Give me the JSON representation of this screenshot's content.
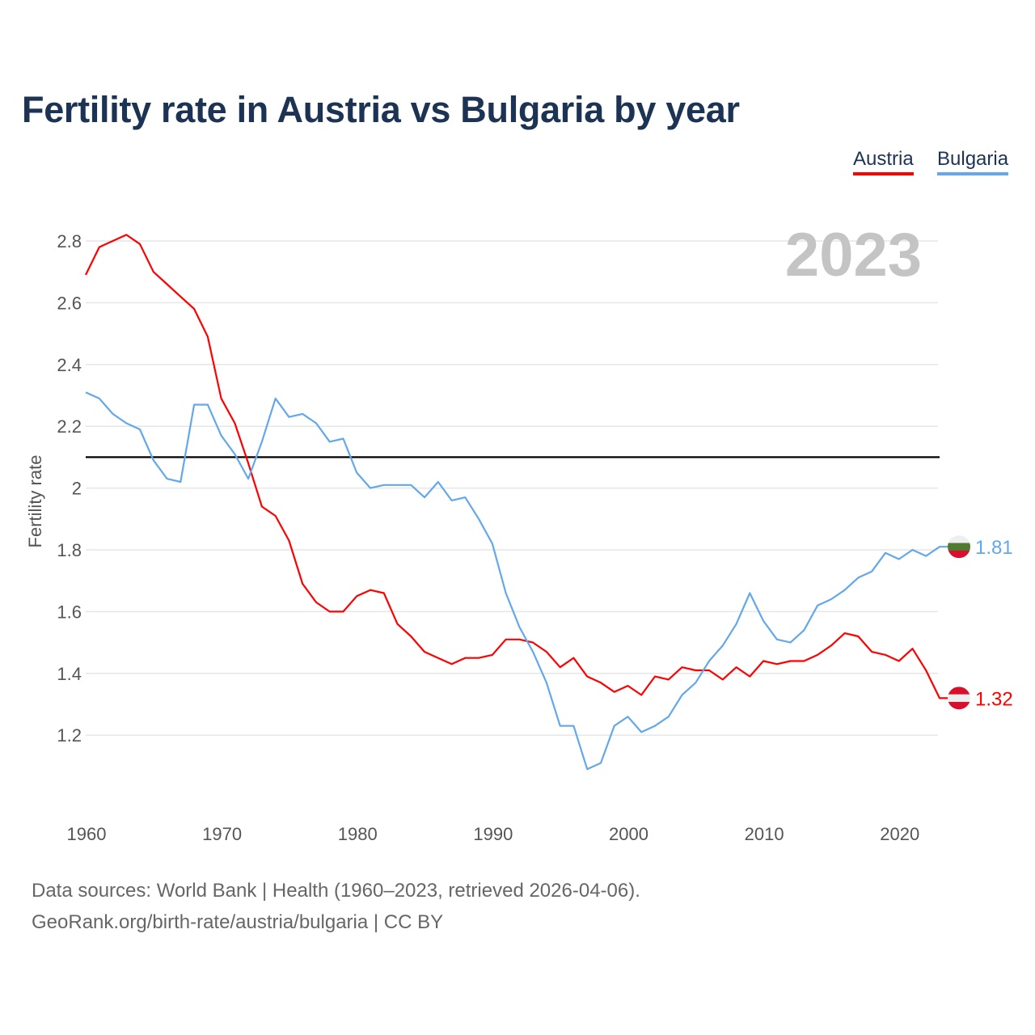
{
  "chart_data": {
    "type": "line",
    "title": "Fertility rate in Austria vs Bulgaria by year",
    "xlabel": "",
    "ylabel": "Fertility rate",
    "year_label": "2023",
    "xlim": [
      1960,
      2023
    ],
    "ylim": [
      1.0,
      2.85
    ],
    "grid": true,
    "legend_position": "top-right",
    "y_ticks": [
      1.2,
      1.4,
      1.6,
      1.8,
      2,
      2.2,
      2.4,
      2.6,
      2.8
    ],
    "y_tick_labels": [
      "1.2",
      "1.4",
      "1.6",
      "1.8",
      "2",
      "2.2",
      "2.4",
      "2.6",
      "2.8"
    ],
    "x_ticks": [
      1960,
      1970,
      1980,
      1990,
      2000,
      2010,
      2020
    ],
    "x_tick_labels": [
      "1960",
      "1970",
      "1980",
      "1990",
      "2000",
      "2010",
      "2020"
    ],
    "reference_line": 2.1,
    "x": [
      1960,
      1961,
      1962,
      1963,
      1964,
      1965,
      1966,
      1967,
      1968,
      1969,
      1970,
      1971,
      1972,
      1973,
      1974,
      1975,
      1976,
      1977,
      1978,
      1979,
      1980,
      1981,
      1982,
      1983,
      1984,
      1985,
      1986,
      1987,
      1988,
      1989,
      1990,
      1991,
      1992,
      1993,
      1994,
      1995,
      1996,
      1997,
      1998,
      1999,
      2000,
      2001,
      2002,
      2003,
      2004,
      2005,
      2006,
      2007,
      2008,
      2009,
      2010,
      2011,
      2012,
      2013,
      2014,
      2015,
      2016,
      2017,
      2018,
      2019,
      2020,
      2021,
      2022,
      2023
    ],
    "series": [
      {
        "name": "Austria",
        "color": "#ff0000",
        "end_label": "1.32",
        "values": [
          2.69,
          2.78,
          2.8,
          2.82,
          2.79,
          2.7,
          2.66,
          2.62,
          2.58,
          2.49,
          2.29,
          2.21,
          2.08,
          1.94,
          1.91,
          1.83,
          1.69,
          1.63,
          1.6,
          1.6,
          1.65,
          1.67,
          1.66,
          1.56,
          1.52,
          1.47,
          1.45,
          1.43,
          1.45,
          1.45,
          1.46,
          1.51,
          1.51,
          1.5,
          1.47,
          1.42,
          1.45,
          1.39,
          1.37,
          1.34,
          1.36,
          1.33,
          1.39,
          1.38,
          1.42,
          1.41,
          1.41,
          1.38,
          1.42,
          1.39,
          1.44,
          1.43,
          1.44,
          1.44,
          1.46,
          1.49,
          1.53,
          1.52,
          1.47,
          1.46,
          1.44,
          1.48,
          1.41,
          1.32
        ]
      },
      {
        "name": "Bulgaria",
        "color": "#62a8ea",
        "end_label": "1.81",
        "values": [
          2.31,
          2.29,
          2.24,
          2.21,
          2.19,
          2.09,
          2.03,
          2.02,
          2.27,
          2.27,
          2.17,
          2.11,
          2.03,
          2.15,
          2.29,
          2.23,
          2.24,
          2.21,
          2.15,
          2.16,
          2.05,
          2.0,
          2.01,
          2.01,
          2.01,
          1.97,
          2.02,
          1.96,
          1.97,
          1.9,
          1.82,
          1.66,
          1.55,
          1.47,
          1.37,
          1.23,
          1.23,
          1.09,
          1.11,
          1.23,
          1.26,
          1.21,
          1.23,
          1.26,
          1.33,
          1.37,
          1.44,
          1.49,
          1.56,
          1.66,
          1.57,
          1.51,
          1.5,
          1.54,
          1.62,
          1.64,
          1.67,
          1.71,
          1.73,
          1.79,
          1.77,
          1.8,
          1.78,
          1.81
        ]
      }
    ]
  },
  "footer": {
    "sources": "Data sources: World Bank | Health (1960–2023, retrieved 2026-04-06).",
    "credit": "GeoRank.org/birth-rate/austria/bulgaria | CC BY"
  }
}
